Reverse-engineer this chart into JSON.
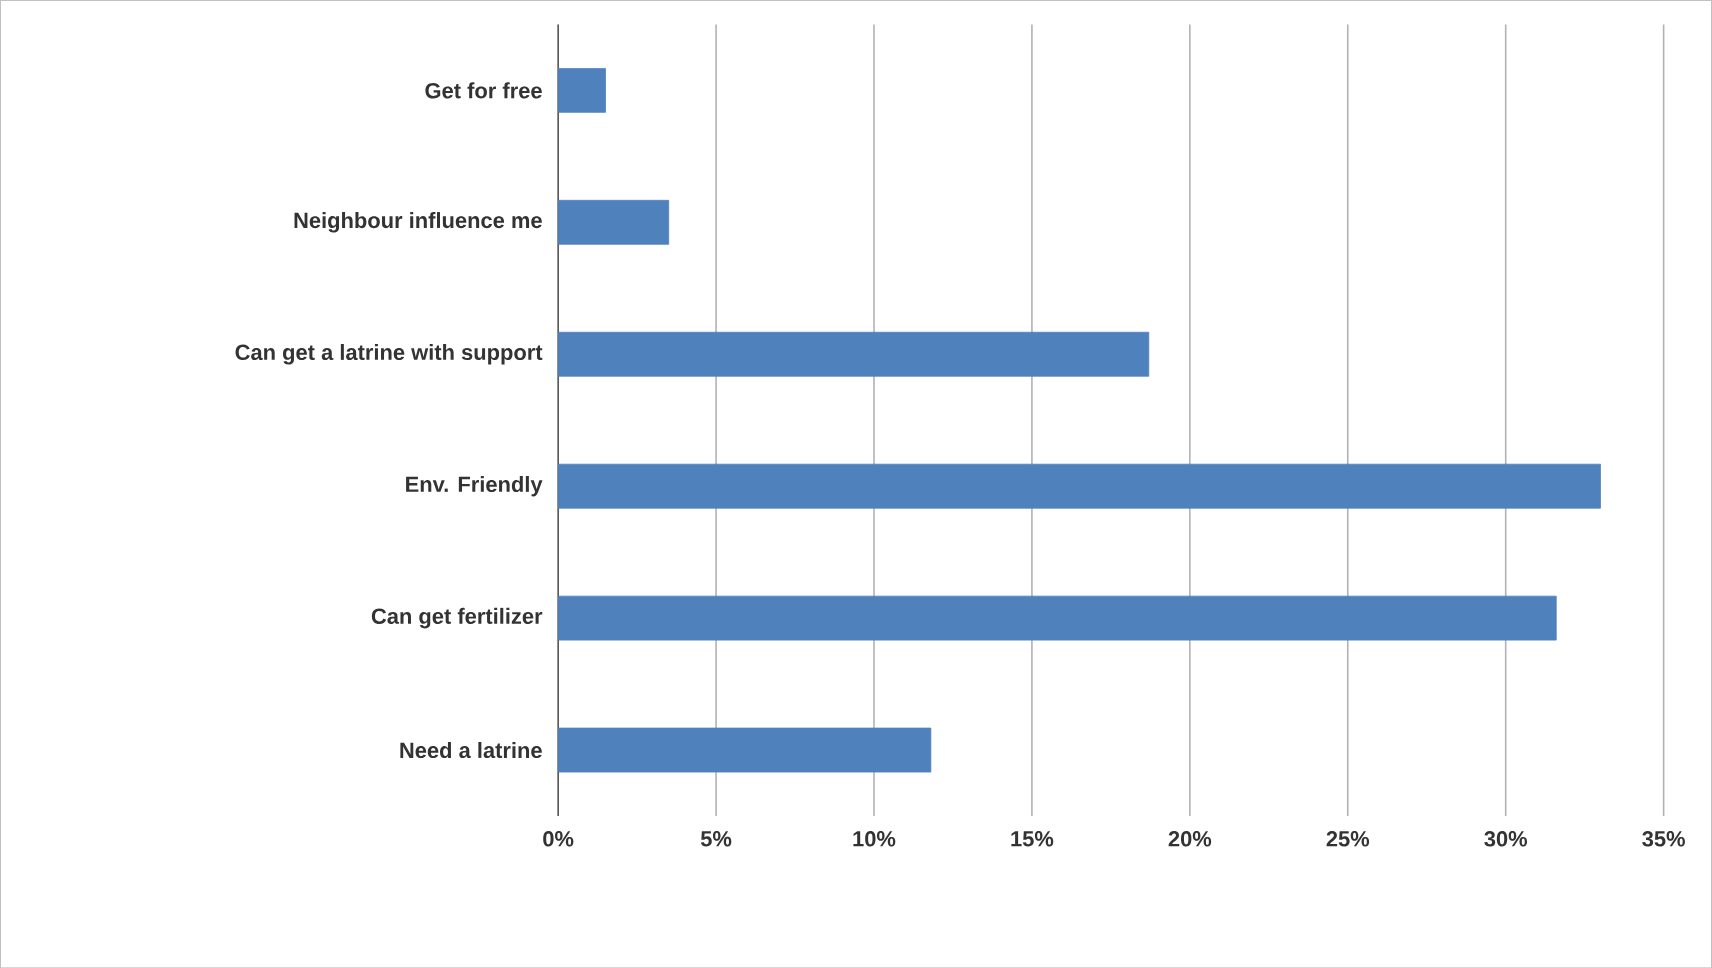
{
  "chart_data": {
    "type": "bar",
    "orientation": "horizontal",
    "categories": [
      "Get for free",
      "Neighbour influence me",
      "Can get a latrine with support",
      "Env. Friendly",
      "Can get fertilizer",
      "Need a latrine"
    ],
    "values": [
      1.5,
      3.5,
      18.7,
      33.0,
      31.6,
      11.8
    ],
    "color": "#4f81bd",
    "xlim": [
      0,
      35
    ],
    "xticks": [
      {
        "value": 0,
        "label": "0%"
      },
      {
        "value": 5,
        "label": "5%"
      },
      {
        "value": 10,
        "label": "10%"
      },
      {
        "value": 15,
        "label": "15%"
      },
      {
        "value": 20,
        "label": "20%"
      },
      {
        "value": 25,
        "label": "25%"
      },
      {
        "value": 30,
        "label": "30%"
      },
      {
        "value": 35,
        "label": "35%"
      }
    ],
    "grid": "x"
  }
}
